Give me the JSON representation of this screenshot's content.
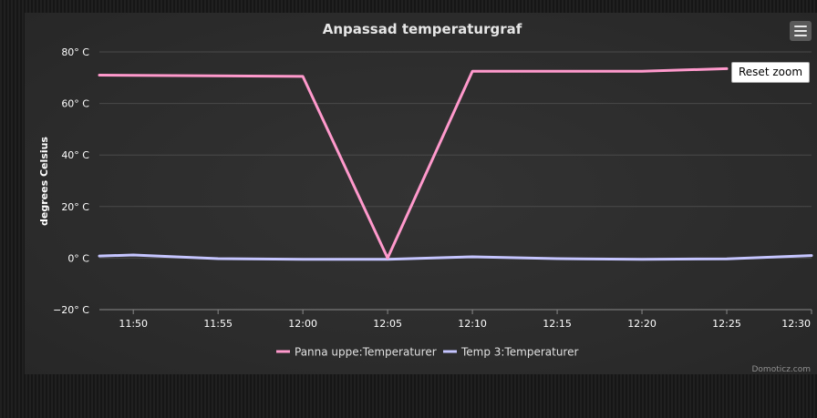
{
  "chart_data": {
    "type": "line",
    "title": "Anpassad temperaturgraf",
    "ylabel": "degrees Celsius",
    "xlabel": "",
    "ylim": [
      -20,
      80
    ],
    "yticks": [
      80,
      60,
      40,
      20,
      0,
      -20
    ],
    "ytick_labels": [
      "80° C",
      "60° C",
      "40° C",
      "20° C",
      "0° C",
      "−20° C"
    ],
    "xlim": [
      "11:48",
      "12:30"
    ],
    "xticks": [
      "11:50",
      "11:55",
      "12:00",
      "12:05",
      "12:10",
      "12:15",
      "12:20",
      "12:25",
      "12:30"
    ],
    "grid": true,
    "legend_position": "bottom-center",
    "series": [
      {
        "name": "Panna uppe:Temperaturer",
        "color": "#ff99cc",
        "x": [
          "11:48",
          "12:00",
          "12:05",
          "12:10",
          "12:20",
          "12:25"
        ],
        "y": [
          71,
          70.5,
          0,
          72.5,
          72.5,
          73.5
        ]
      },
      {
        "name": "Temp 3:Temperaturer",
        "color": "#c5c5ff",
        "x": [
          "11:48",
          "11:50",
          "11:55",
          "12:00",
          "12:05",
          "12:10",
          "12:15",
          "12:20",
          "12:25",
          "12:30"
        ],
        "y": [
          0.8,
          1.2,
          -0.2,
          -0.5,
          -0.5,
          0.5,
          -0.2,
          -0.5,
          -0.3,
          1.0
        ]
      }
    ]
  },
  "ui": {
    "reset_zoom_label": "Reset zoom",
    "credits": "Domoticz.com",
    "menu_icon": "hamburger-menu-icon"
  },
  "colors": {
    "background": "#2b2b2b",
    "grid": "#4a4a4a",
    "text": "#ffffff"
  }
}
